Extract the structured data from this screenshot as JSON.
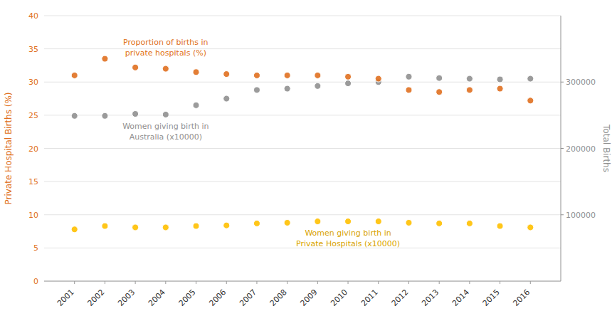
{
  "chart_data": {
    "type": "scatter",
    "ylabel": "Private Hospital Births (%)",
    "y2label": "Total Births",
    "x": [
      2001,
      2002,
      2003,
      2004,
      2005,
      2006,
      2007,
      2008,
      2009,
      2010,
      2011,
      2012,
      2013,
      2014,
      2015,
      2016
    ],
    "xlim": [
      2000,
      2017
    ],
    "xticks": [
      2001,
      2002,
      2003,
      2004,
      2005,
      2006,
      2007,
      2008,
      2009,
      2010,
      2011,
      2012,
      2013,
      2014,
      2015,
      2016
    ],
    "ylim": [
      0,
      40
    ],
    "yticks": [
      0,
      5,
      10,
      15,
      20,
      25,
      30,
      35,
      40
    ],
    "y2lim": [
      0,
      400000
    ],
    "y2ticks": [
      100000,
      200000,
      300000
    ],
    "grid": true,
    "marker": "circle",
    "series": [
      {
        "name": "Women giving birth in\nAustralia (x10000)",
        "color": "#909090",
        "axis": "y2",
        "values": [
          249000,
          249000,
          252000,
          251000,
          265000,
          275000,
          288000,
          290000,
          294000,
          298000,
          300000,
          308000,
          306000,
          305000,
          304000,
          305000
        ]
      },
      {
        "name": "Proportion of births in\nprivate hospitals (%)",
        "color": "#E07020",
        "values": [
          31.0,
          33.5,
          32.2,
          32.0,
          31.5,
          31.2,
          31.0,
          31.0,
          31.0,
          30.8,
          30.5,
          28.8,
          28.5,
          28.8,
          29.0,
          27.2
        ]
      },
      {
        "name": "Women giving birth in\nPrivate Hospitals (x10000)",
        "color": "#FFC000",
        "values": [
          7.8,
          8.3,
          8.1,
          8.1,
          8.3,
          8.4,
          8.7,
          8.8,
          9.0,
          9.0,
          9.0,
          8.8,
          8.7,
          8.7,
          8.3,
          8.1
        ]
      }
    ]
  }
}
